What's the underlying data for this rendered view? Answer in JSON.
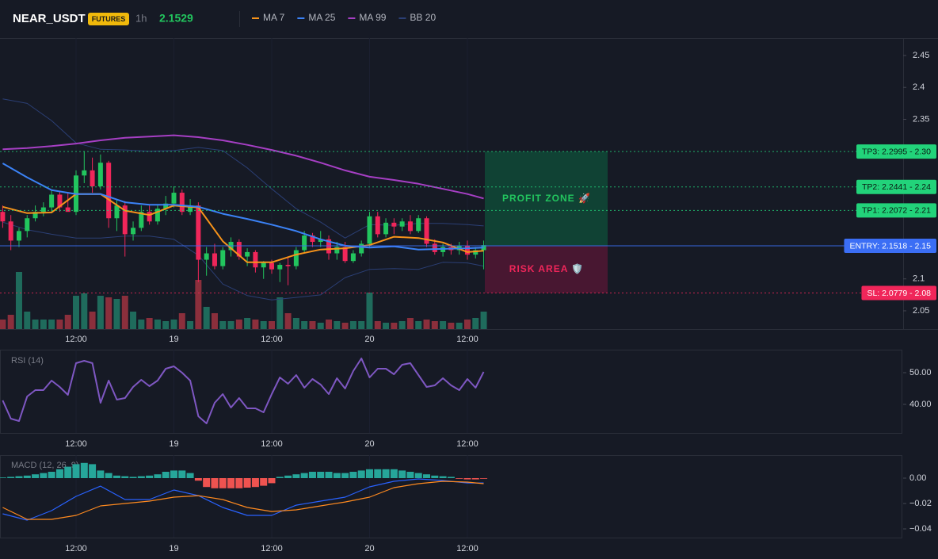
{
  "header": {
    "symbol": "NEAR_USDT",
    "badge": "FUTURES",
    "interval": "1h",
    "last_price": 2.1529
  },
  "chart_data": [
    {
      "type": "candlestick",
      "xlim": [
        -0.33,
        110.45
      ],
      "xticks": [
        {
          "value": 9,
          "label": "12:00"
        },
        {
          "value": 21,
          "label": "19"
        },
        {
          "value": 33,
          "label": "12:00"
        },
        {
          "value": 45,
          "label": "20"
        },
        {
          "value": 57,
          "label": "12:00"
        }
      ],
      "ylim": [
        2.0214,
        2.4773
      ],
      "yticks": [
        2.05,
        2.1,
        2.35,
        2.4,
        2.45
      ],
      "up_color": "#22c55e",
      "down_color": "#f0265a",
      "volume_up_color": "#1f6b5c",
      "volume_down_color": "#8b2f3c",
      "candles": {
        "open": [
          2.205,
          2.19,
          2.16,
          2.175,
          2.195,
          2.205,
          2.212,
          2.232,
          2.212,
          2.205,
          2.262,
          2.27,
          2.245,
          2.282,
          2.195,
          2.215,
          2.17,
          2.18,
          2.205,
          2.19,
          2.21,
          2.218,
          2.235,
          2.205,
          2.215,
          2.13,
          2.14,
          2.12,
          2.145,
          2.158,
          2.135,
          2.142,
          2.118,
          2.125,
          2.115,
          2.122,
          2.12,
          2.145,
          2.168,
          2.158,
          2.162,
          2.14,
          2.15,
          2.128,
          2.14,
          2.155,
          2.198,
          2.17,
          2.188,
          2.182,
          2.19,
          2.175,
          2.195,
          2.155,
          2.142,
          2.15,
          2.145,
          2.152,
          2.138,
          2.145
        ],
        "high": [
          2.215,
          2.2,
          2.18,
          2.2,
          2.215,
          2.22,
          2.24,
          2.238,
          2.235,
          2.27,
          2.3,
          2.29,
          2.295,
          2.285,
          2.225,
          2.222,
          2.19,
          2.215,
          2.215,
          2.215,
          2.23,
          2.245,
          2.24,
          2.225,
          2.22,
          2.15,
          2.155,
          2.15,
          2.165,
          2.162,
          2.148,
          2.145,
          2.128,
          2.13,
          2.125,
          2.135,
          2.15,
          2.175,
          2.172,
          2.175,
          2.168,
          2.158,
          2.158,
          2.145,
          2.16,
          2.205,
          2.205,
          2.195,
          2.195,
          2.195,
          2.2,
          2.2,
          2.198,
          2.162,
          2.155,
          2.155,
          2.158,
          2.16,
          2.15,
          2.16
        ],
        "low": [
          2.18,
          2.145,
          2.15,
          2.165,
          2.19,
          2.198,
          2.205,
          2.205,
          2.208,
          2.2,
          2.25,
          2.235,
          2.24,
          2.18,
          2.175,
          2.135,
          2.16,
          2.175,
          2.185,
          2.185,
          2.2,
          2.212,
          2.2,
          2.2,
          2.095,
          2.105,
          2.115,
          2.115,
          2.135,
          2.13,
          2.12,
          2.11,
          2.1,
          2.108,
          2.095,
          2.09,
          2.115,
          2.14,
          2.15,
          2.15,
          2.13,
          2.13,
          2.125,
          2.125,
          2.135,
          2.15,
          2.165,
          2.165,
          2.17,
          2.175,
          2.17,
          2.172,
          2.15,
          2.138,
          2.135,
          2.138,
          2.138,
          2.13,
          2.132,
          2.115
        ],
        "close": [
          2.19,
          2.16,
          2.175,
          2.195,
          2.205,
          2.212,
          2.232,
          2.212,
          2.205,
          2.262,
          2.27,
          2.245,
          2.282,
          2.195,
          2.215,
          2.17,
          2.18,
          2.205,
          2.19,
          2.21,
          2.218,
          2.235,
          2.205,
          2.215,
          2.13,
          2.14,
          2.12,
          2.145,
          2.158,
          2.135,
          2.142,
          2.118,
          2.125,
          2.115,
          2.122,
          2.12,
          2.145,
          2.168,
          2.158,
          2.162,
          2.14,
          2.15,
          2.128,
          2.14,
          2.155,
          2.198,
          2.17,
          2.188,
          2.182,
          2.19,
          2.175,
          2.195,
          2.155,
          2.142,
          2.15,
          2.145,
          2.152,
          2.138,
          2.145,
          2.1529
        ]
      },
      "volume": [
        12,
        18,
        72,
        22,
        12,
        12,
        12,
        12,
        18,
        42,
        45,
        22,
        42,
        40,
        38,
        42,
        22,
        12,
        14,
        12,
        10,
        12,
        20,
        10,
        62,
        28,
        20,
        10,
        10,
        12,
        14,
        12,
        10,
        10,
        40,
        20,
        14,
        10,
        10,
        8,
        12,
        10,
        8,
        10,
        10,
        46,
        10,
        8,
        8,
        10,
        14,
        10,
        12,
        10,
        10,
        8,
        8,
        12,
        14,
        22
      ],
      "series": [
        {
          "name": "MA 7",
          "color": "#f7931a",
          "x": [
            0,
            3,
            6,
            9,
            12,
            15,
            18,
            21,
            24,
            27,
            30,
            33,
            36,
            39,
            42,
            45,
            48,
            51,
            54,
            57,
            59
          ],
          "values": [
            2.213,
            2.203,
            2.204,
            2.233,
            2.233,
            2.207,
            2.2,
            2.215,
            2.212,
            2.159,
            2.126,
            2.126,
            2.138,
            2.146,
            2.148,
            2.153,
            2.166,
            2.164,
            2.157,
            2.142,
            2.144
          ]
        },
        {
          "name": "MA 25",
          "color": "#3b82f6",
          "x": [
            0,
            3,
            6,
            9,
            12,
            15,
            18,
            21,
            24,
            27,
            30,
            33,
            36,
            39,
            42,
            45,
            48,
            51,
            54,
            57,
            59
          ],
          "values": [
            2.281,
            2.259,
            2.239,
            2.233,
            2.233,
            2.22,
            2.216,
            2.216,
            2.213,
            2.202,
            2.194,
            2.185,
            2.175,
            2.162,
            2.152,
            2.149,
            2.151,
            2.146,
            2.147,
            2.148,
            2.149
          ]
        },
        {
          "name": "MA 99",
          "color": "#a63fc4",
          "x": [
            0,
            3,
            6,
            9,
            12,
            15,
            18,
            21,
            24,
            27,
            30,
            33,
            36,
            39,
            42,
            45,
            48,
            51,
            54,
            57,
            59
          ],
          "values": [
            2.303,
            2.305,
            2.308,
            2.312,
            2.317,
            2.321,
            2.323,
            2.325,
            2.322,
            2.317,
            2.31,
            2.302,
            2.293,
            2.282,
            2.27,
            2.26,
            2.255,
            2.249,
            2.241,
            2.233,
            2.226
          ]
        },
        {
          "name": "BB 20",
          "color": "#2b3f75",
          "x": [
            0,
            3,
            6,
            9,
            12,
            15,
            18,
            21,
            24,
            27,
            30,
            33,
            36,
            39,
            42,
            45,
            48,
            51,
            54,
            57,
            59
          ],
          "upper": [
            2.382,
            2.375,
            2.348,
            2.313,
            2.303,
            2.302,
            2.3,
            2.301,
            2.306,
            2.301,
            2.274,
            2.241,
            2.21,
            2.189,
            2.164,
            2.185,
            2.184,
            2.187,
            2.187,
            2.185,
            2.183
          ],
          "lower": [
            2.189,
            2.177,
            2.17,
            2.164,
            2.164,
            2.167,
            2.167,
            2.162,
            2.137,
            2.092,
            2.074,
            2.067,
            2.071,
            2.075,
            2.102,
            2.115,
            2.116,
            2.115,
            2.126,
            2.125,
            2.12
          ]
        }
      ],
      "levels": [
        {
          "value": 2.2995,
          "label": "TP3: 2.2995 - 2.30",
          "color": "#22d37a"
        },
        {
          "value": 2.2441,
          "label": "TP2: 2.2441 - 2.24",
          "color": "#22d37a"
        },
        {
          "value": 2.2072,
          "label": "TP1: 2.2072 - 2.21",
          "color": "#22d37a"
        },
        {
          "value": 2.1518,
          "label": "ENTRY: 2.1518 - 2.15",
          "color": "#3b6ef5"
        },
        {
          "value": 2.0779,
          "label": "SL: 2.0779 - 2.08",
          "color": "#f0265a"
        }
      ],
      "zones": [
        {
          "label": "PROFIT ZONE 🚀",
          "color": "#22c55e",
          "fill": "#0f4a37"
        },
        {
          "label": "RISK AREA 🛡️",
          "color": "#f0265a",
          "fill": "#4e1733"
        }
      ]
    },
    {
      "type": "line",
      "title": "RSI (14)",
      "xlim": [
        -0.33,
        110.45
      ],
      "xticks": [
        {
          "value": 9,
          "label": "12:00"
        },
        {
          "value": 21,
          "label": "19"
        },
        {
          "value": 33,
          "label": "12:00"
        },
        {
          "value": 45,
          "label": "20"
        },
        {
          "value": 57,
          "label": "12:00"
        }
      ],
      "ylim": [
        31,
        57.25
      ],
      "yticks": [
        {
          "value": 50,
          "label": "50.00"
        },
        {
          "value": 40,
          "label": "40.00"
        }
      ],
      "series": [
        {
          "color": "#7e57c2",
          "values": [
            41.25,
            35.5,
            34.75,
            42.5,
            44.5,
            44.5,
            47.5,
            45.5,
            43,
            53,
            53.75,
            53,
            40.5,
            47.5,
            41.5,
            42,
            45.5,
            47.75,
            45.75,
            47.5,
            51.25,
            52,
            50,
            47.5,
            36.25,
            34,
            40.5,
            43.25,
            39,
            42,
            38.75,
            38.75,
            37.5,
            43.25,
            48.5,
            46.5,
            49.25,
            45.25,
            48,
            46.25,
            43.25,
            48.25,
            45,
            50.5,
            54.5,
            48.5,
            51.25,
            51.25,
            49.5,
            52.5,
            53,
            49.25,
            45.5,
            46,
            48.25,
            46,
            44.5,
            48,
            45.25,
            50.25
          ]
        }
      ]
    },
    {
      "type": "macd",
      "title": "MACD (12, 26, 9)",
      "xlim": [
        -0.33,
        110.45
      ],
      "xticks": [
        {
          "value": 9,
          "label": "12:00"
        },
        {
          "value": 21,
          "label": "19"
        },
        {
          "value": 33,
          "label": "12:00"
        },
        {
          "value": 45,
          "label": "20"
        },
        {
          "value": 57,
          "label": "12:00"
        }
      ],
      "ylim": [
        -0.046875,
        0.018125
      ],
      "yticks": [
        {
          "value": 0,
          "label": "0.00"
        },
        {
          "value": -0.02,
          "label": "−0.02"
        },
        {
          "value": -0.04,
          "label": "−0.04"
        }
      ],
      "histogram": {
        "up_color": "#26a69a",
        "down_color": "#ef5350",
        "values": [
          0.0005,
          0.001,
          0.0015,
          0.002,
          0.003,
          0.004,
          0.005,
          0.007,
          0.009,
          0.011,
          0.012,
          0.011,
          0.006,
          0.004,
          0.002,
          0.0015,
          0.001,
          0.0015,
          0.002,
          0.003,
          0.005,
          0.006,
          0.006,
          0.004,
          -0.002,
          -0.007,
          -0.008,
          -0.008,
          -0.008,
          -0.008,
          -0.0075,
          -0.007,
          -0.006,
          -0.004,
          0.001,
          0.002,
          0.003,
          0.004,
          0.005,
          0.005,
          0.005,
          0.004,
          0.004,
          0.005,
          0.006,
          0.007,
          0.007,
          0.007,
          0.007,
          0.006,
          0.005,
          0.004,
          0.003,
          0.002,
          0.0015,
          0.001,
          -0.0005,
          -0.001,
          -0.001,
          -0.0005
        ]
      },
      "series": [
        {
          "color": "#2962ff",
          "x": [
            0,
            3,
            6,
            9,
            12,
            15,
            18,
            21,
            24,
            27,
            30,
            33,
            36,
            39,
            42,
            45,
            48,
            51,
            54,
            57,
            59
          ],
          "values": [
            -0.0281,
            -0.0331,
            -0.0256,
            -0.0144,
            -0.0063,
            -0.0169,
            -0.0169,
            -0.0094,
            -0.0138,
            -0.0231,
            -0.0294,
            -0.0294,
            -0.0213,
            -0.0181,
            -0.015,
            -0.0069,
            -0.0025,
            -0.0006,
            -0.0019,
            -0.0038,
            -0.0038
          ]
        },
        {
          "color": "#ff8a1f",
          "x": [
            0,
            3,
            6,
            9,
            12,
            15,
            18,
            21,
            24,
            27,
            30,
            33,
            36,
            39,
            42,
            45,
            48,
            51,
            54,
            57,
            59
          ],
          "values": [
            -0.0231,
            -0.0325,
            -0.0325,
            -0.0294,
            -0.0219,
            -0.02,
            -0.0181,
            -0.015,
            -0.0138,
            -0.0169,
            -0.0231,
            -0.0263,
            -0.025,
            -0.0219,
            -0.0188,
            -0.015,
            -0.0075,
            -0.0044,
            -0.0025,
            -0.0031,
            -0.0044
          ]
        }
      ]
    }
  ]
}
